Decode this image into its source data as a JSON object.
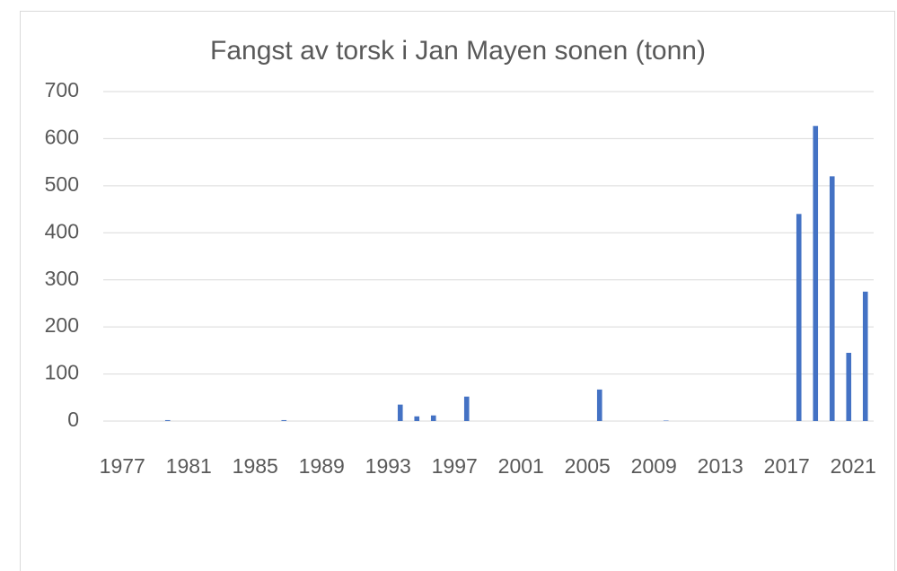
{
  "chart_data": {
    "type": "bar",
    "title": "Fangst av torsk i Jan Mayen sonen (tonn)",
    "categories": [
      "1977",
      null,
      null,
      null,
      "1981",
      null,
      null,
      null,
      "1985",
      null,
      null,
      null,
      "1989",
      null,
      null,
      null,
      "1993",
      null,
      null,
      null,
      "1997",
      null,
      null,
      null,
      "2001",
      null,
      null,
      null,
      "2005",
      null,
      null,
      null,
      "2009",
      null,
      null,
      null,
      "2013",
      null,
      null,
      null,
      "2017",
      null,
      null,
      null,
      "2021",
      null
    ],
    "values": [
      0,
      0,
      0,
      2,
      0,
      0,
      0,
      0,
      0,
      0,
      2,
      0,
      0,
      0,
      0,
      0,
      0,
      35,
      10,
      12,
      0,
      52,
      0,
      0,
      0,
      0,
      0,
      0,
      0,
      67,
      0,
      0,
      0,
      1,
      0,
      0,
      0,
      0,
      0,
      0,
      0,
      440,
      627,
      520,
      145,
      275
    ],
    "color": "#4472c4",
    "ylim": [
      0,
      700
    ],
    "yticks": [
      0,
      100,
      200,
      300,
      400,
      500,
      600,
      700
    ],
    "grid": true
  }
}
